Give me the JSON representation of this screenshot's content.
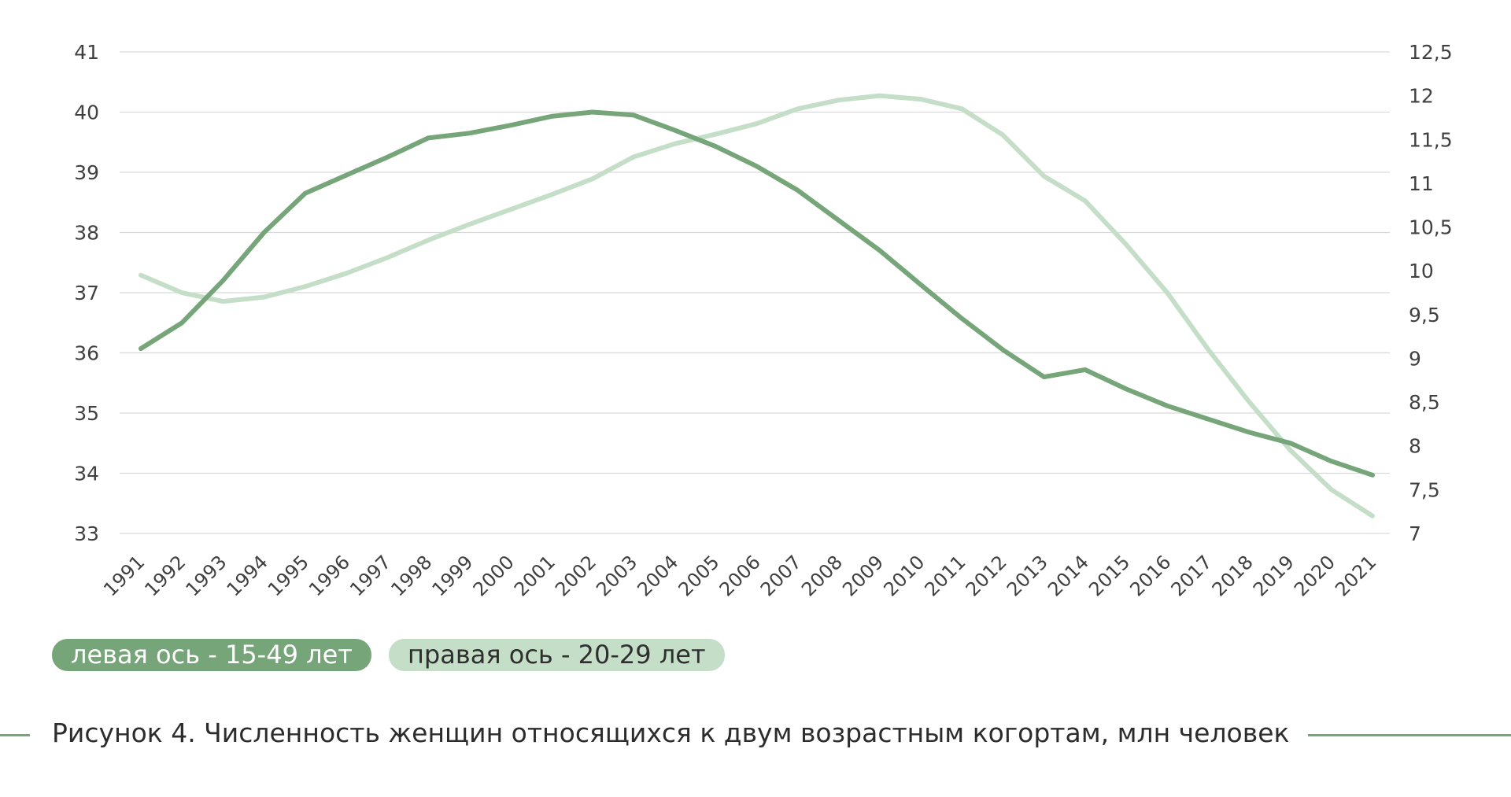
{
  "chart_data": {
    "type": "line",
    "categories": [
      "1991",
      "1992",
      "1993",
      "1994",
      "1995",
      "1996",
      "1997",
      "1998",
      "1999",
      "2000",
      "2001",
      "2002",
      "2003",
      "2004",
      "2005",
      "2006",
      "2007",
      "2008",
      "2009",
      "2010",
      "2011",
      "2012",
      "2013",
      "2014",
      "2015",
      "2016",
      "2017",
      "2018",
      "2019",
      "2020",
      "2021"
    ],
    "left_axis": {
      "ylim": [
        33,
        41
      ],
      "ticks": [
        "33",
        "34",
        "35",
        "36",
        "37",
        "38",
        "39",
        "40",
        "41"
      ]
    },
    "right_axis": {
      "ylim": [
        7,
        12.5
      ],
      "ticks": [
        "7",
        "7,5",
        "8",
        "8,5",
        "9",
        "9,5",
        "10",
        "10,5",
        "11",
        "11,5",
        "12",
        "12,5"
      ]
    },
    "grid": true,
    "series": [
      {
        "name": "левая ось - 15-49 лет",
        "axis": "left",
        "color": "#75a578",
        "values": [
          36.07,
          36.5,
          37.2,
          38.0,
          38.65,
          38.95,
          39.25,
          39.57,
          39.65,
          39.78,
          39.93,
          40.0,
          39.95,
          39.7,
          39.43,
          39.1,
          38.7,
          38.2,
          37.7,
          37.13,
          36.57,
          36.05,
          35.6,
          35.72,
          35.4,
          35.12,
          34.9,
          34.68,
          34.5,
          34.2,
          33.97
        ]
      },
      {
        "name": "правая ось - 20-29 лет",
        "axis": "right",
        "color": "#c5dec7",
        "values": [
          9.95,
          9.75,
          9.65,
          9.7,
          9.82,
          9.97,
          10.15,
          10.35,
          10.53,
          10.7,
          10.87,
          11.05,
          11.3,
          11.45,
          11.56,
          11.68,
          11.85,
          11.95,
          12.0,
          11.96,
          11.85,
          11.55,
          11.08,
          10.8,
          10.3,
          9.75,
          9.1,
          8.5,
          7.95,
          7.5,
          7.2
        ]
      }
    ]
  },
  "legend": {
    "left_label": "левая ось - 15-49 лет",
    "right_label": "правая ось - 20-29 лет"
  },
  "caption": "Рисунок 4. Численность женщин относящихся к двум возрастным когортам, млн человек"
}
